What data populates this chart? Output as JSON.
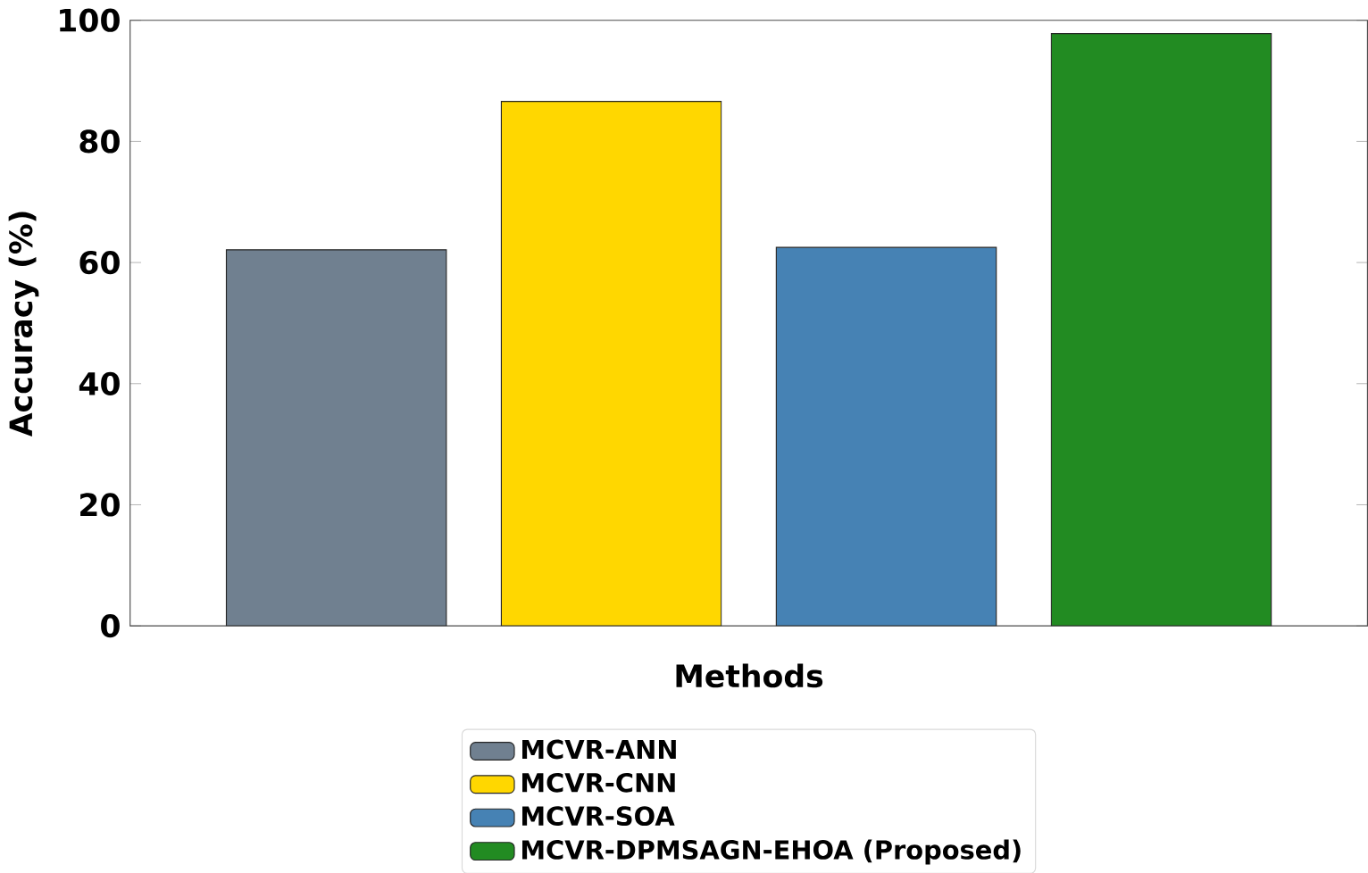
{
  "chart_data": {
    "type": "bar",
    "xlabel": "Methods",
    "ylabel": "Accuracy (%)",
    "categories": [
      null
    ],
    "series": [
      {
        "name": "MCVR-ANN",
        "color": "#708090",
        "values": [
          62.1
        ]
      },
      {
        "name": "MCVR-CNN",
        "color": "#ffd700",
        "values": [
          86.6
        ]
      },
      {
        "name": "MCVR-SOA",
        "color": "#4682b4",
        "values": [
          62.5
        ]
      },
      {
        "name": "MCVR-DPMSAGN-EHOA (Proposed)",
        "color": "#228b22",
        "values": [
          97.8
        ]
      }
    ],
    "ylim": [
      0,
      100
    ],
    "yticks": [
      0,
      20,
      40,
      60,
      80,
      100
    ],
    "legend": "bottom"
  }
}
